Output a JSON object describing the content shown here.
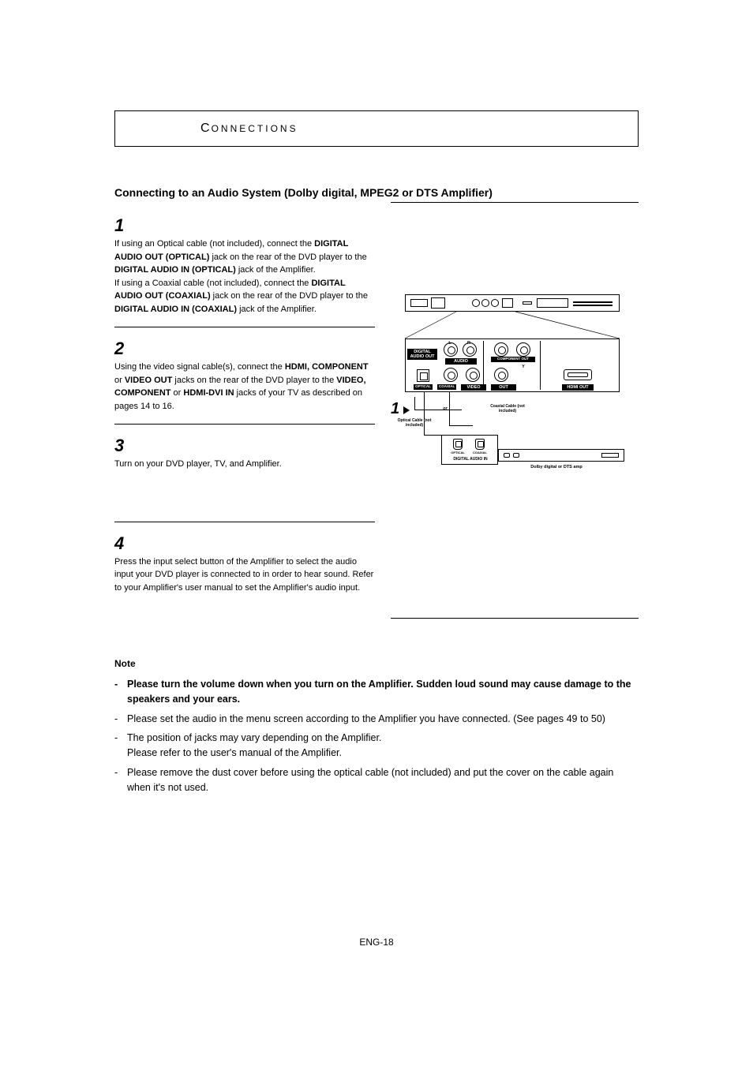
{
  "section_header": {
    "first_letter": "C",
    "rest": "ONNECTIONS"
  },
  "title": {
    "prefix": "Connecting to an ",
    "bold_part": "Audio System (Dolby digital, MPEG2 or DTS Amplifier)"
  },
  "steps": [
    {
      "num": "1",
      "parts": [
        {
          "t": "If using an Optical cable (not included), connect the ",
          "b": false
        },
        {
          "t": "DIGITAL AUDIO OUT (OPTICAL)",
          "b": true
        },
        {
          "t": " jack on the rear of the DVD player to the ",
          "b": false
        },
        {
          "t": "DIGITAL AUDIO IN (OPTICAL)",
          "b": true
        },
        {
          "t": " jack of the Amplifier.",
          "b": false
        },
        {
          "br": true
        },
        {
          "t": "If using a Coaxial cable (not included), connect the ",
          "b": false
        },
        {
          "t": "DIGITAL AUDIO OUT (COAXIAL)",
          "b": true
        },
        {
          "t": " jack on the rear of the DVD player to the ",
          "b": false
        },
        {
          "t": "DIGITAL AUDIO IN (COAXIAL)",
          "b": true
        },
        {
          "t": " jack of the Amplifier.",
          "b": false
        }
      ]
    },
    {
      "num": "2",
      "parts": [
        {
          "t": "Using the video signal cable(s), connect the ",
          "b": false
        },
        {
          "t": "HDMI, COMPONENT",
          "b": true
        },
        {
          "t": " or ",
          "b": false
        },
        {
          "t": "VIDEO OUT",
          "b": true
        },
        {
          "t": " jacks on the rear of the DVD player to the ",
          "b": false
        },
        {
          "t": "VIDEO, COMPONENT",
          "b": true
        },
        {
          "t": " or ",
          "b": false
        },
        {
          "t": "HDMI-DVI IN",
          "b": true
        },
        {
          "t": " jacks of your TV as described on pages 14 to 16.",
          "b": false
        }
      ]
    },
    {
      "num": "3",
      "parts": [
        {
          "t": "Turn on your DVD player, TV, and Amplifier.",
          "b": false
        }
      ],
      "extra_space": 64
    },
    {
      "num": "4",
      "parts": [
        {
          "t": "Press the input select button of the Amplifier to select the audio input your DVD player is connected to in order to hear sound. Refer to your Amplifier's user manual to set the Amplifier's audio input.",
          "b": false
        }
      ],
      "no_border": true
    }
  ],
  "note": {
    "heading": "Note",
    "items": [
      {
        "bullet": "-",
        "bold": true,
        "text": "Please turn the volume down when you turn on the Amplifier. Sudden loud sound may cause damage to the speakers and your ears."
      },
      {
        "bullet": "-",
        "bold": false,
        "text": "Please set the audio in the menu screen according to the Amplifier you have connected. (See pages 49 to 50)"
      },
      {
        "bullet": "-",
        "bold": false,
        "text": "The position of jacks may vary depending on the Amplifier.\nPlease refer to the user's manual of the Amplifier."
      },
      {
        "bullet": "-",
        "bold": false,
        "text": "Please remove the dust cover before using the optical cable (not included) and put the cover on the cable again when it's not used."
      }
    ]
  },
  "page_number": "ENG-18",
  "diagram": {
    "step_marker": "1",
    "labels": {
      "digital_audio_out": "DIGITAL\nAUDIO OUT",
      "audio": "AUDIO",
      "component_out": "COMPONENT OUT",
      "video": "VIDEO",
      "optical": "OPTICAL",
      "coaxial": "COAXIAL",
      "out": "OUT",
      "hdmi_out": "HDMI OUT",
      "or": "or",
      "coaxial_cable": "Coaxial Cable\n(not included)",
      "optical_cable": "Optical Cable\n(not included)",
      "amp_optical": "OPTICAL",
      "amp_coaxial": "COAXIAL",
      "digital_audio_in": "DIGITAL AUDIO IN",
      "amp_name": "Dolby digital or\nDTS amp",
      "l": "L",
      "r": "R",
      "pr": "PR",
      "pb": "PB",
      "y": "Y"
    }
  }
}
